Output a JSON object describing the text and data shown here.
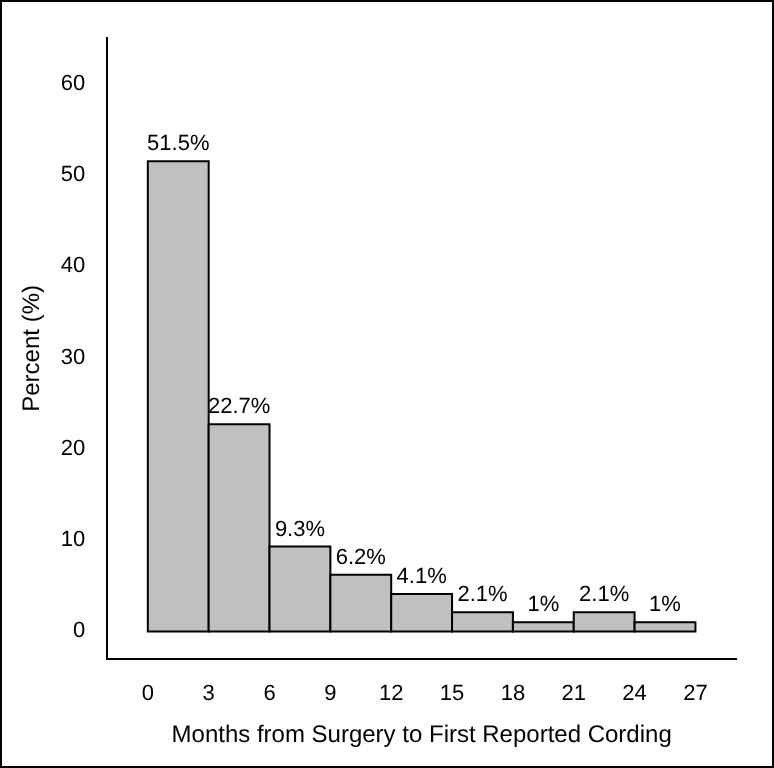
{
  "chart_data": {
    "type": "histogram",
    "xlabel": "Months from Surgery to First Reported Cording",
    "ylabel": "Percent (%)",
    "bins": [
      0,
      3,
      6,
      9,
      12,
      15,
      18,
      21,
      24,
      27
    ],
    "values": [
      51.5,
      22.7,
      9.3,
      6.2,
      4.1,
      2.1,
      1,
      2.1,
      1
    ],
    "value_labels": [
      "51.5%",
      "22.7%",
      "9.3%",
      "6.2%",
      "4.1%",
      "2.1%",
      "1%",
      "2.1%",
      "1%"
    ],
    "color": "#c0c0c0",
    "xlim": [
      -2,
      29
    ],
    "xticks": [
      0,
      3,
      6,
      9,
      12,
      15,
      18,
      21,
      24,
      27
    ],
    "ylim": [
      -3,
      65
    ],
    "yticks": [
      0,
      10,
      20,
      30,
      40,
      50,
      60
    ],
    "grid": false,
    "legend": false
  }
}
